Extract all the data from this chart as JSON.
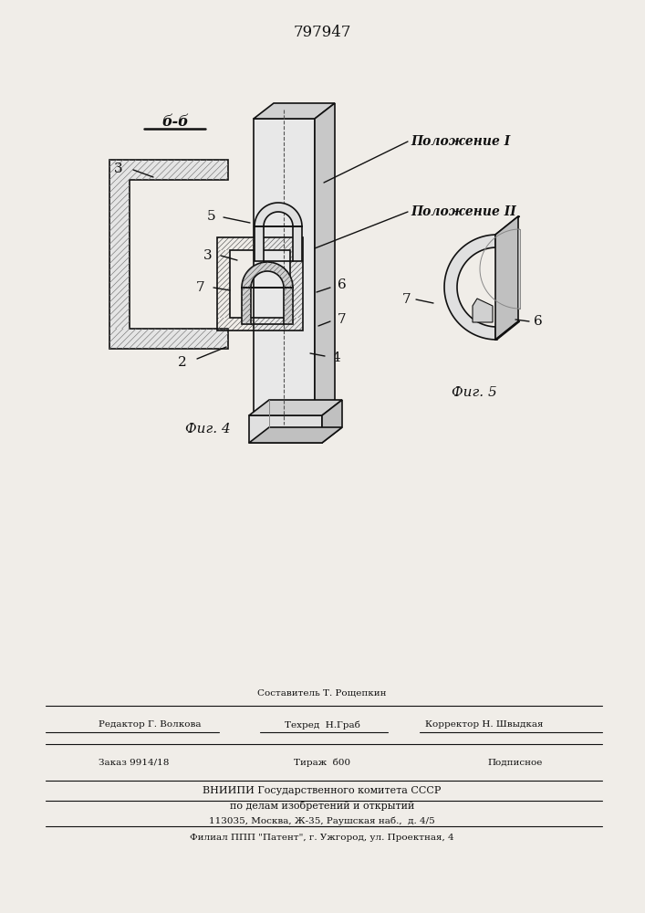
{
  "patent_number": "797947",
  "bg_color": "#f0ede8",
  "fig4_label": "Фиг. 4",
  "fig5_label": "Фиг. 5",
  "bb_label": "б-б",
  "polozhenie1": "Положение I",
  "polozhenie2": "Положение II",
  "lc": "#111111",
  "lw": 1.2,
  "hc": "#777777"
}
